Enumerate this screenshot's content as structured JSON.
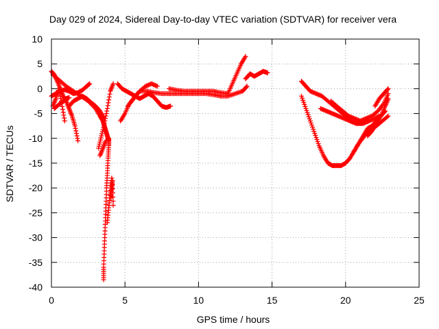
{
  "chart_data": {
    "type": "scatter",
    "title": "Day 029 of 2024, Sidereal Day-to-day VTEC variation (SDTVAR) for receiver vera",
    "xlabel": "GPS time / hours",
    "ylabel": "SDTVAR / TECUs",
    "xlim": [
      0,
      25
    ],
    "ylim": [
      -40,
      10
    ],
    "xticks": [
      0,
      5,
      10,
      15,
      20,
      25
    ],
    "yticks": [
      10,
      5,
      0,
      -5,
      -10,
      -15,
      -20,
      -25,
      -30,
      -35,
      -40
    ],
    "grid": true,
    "marker": "+",
    "color": "#ff0000",
    "series": [
      {
        "name": "s1",
        "x": [
          0.0,
          0.2,
          0.4,
          0.6,
          0.8,
          1.0,
          1.2,
          1.4,
          1.6,
          1.8
        ],
        "y": [
          3.5,
          2.8,
          1.5,
          0.0,
          -1.5,
          -2.5,
          -4.0,
          -5.5,
          -7.5,
          -10.5
        ]
      },
      {
        "name": "s2",
        "x": [
          0.0,
          0.3,
          0.6,
          0.9,
          1.2,
          1.5,
          1.8,
          2.1,
          2.4,
          2.6
        ],
        "y": [
          -1.5,
          -1.0,
          -0.5,
          -0.2,
          -0.5,
          -1.0,
          -0.8,
          -0.3,
          0.5,
          1.0
        ]
      },
      {
        "name": "s3",
        "x": [
          0.1,
          0.3,
          0.5,
          0.7,
          0.9
        ],
        "y": [
          -3.5,
          -2.0,
          0.0,
          -3.0,
          -6.5
        ]
      },
      {
        "name": "s4",
        "x": [
          0.1,
          0.5,
          1.0,
          1.5,
          2.0,
          2.5,
          3.0,
          3.3,
          3.5,
          3.6,
          3.7,
          3.8,
          3.9
        ],
        "y": [
          2.8,
          1.8,
          0.5,
          -0.5,
          -1.5,
          -2.5,
          -4.0,
          -5.5,
          -6.5,
          -7.5,
          -8.5,
          -9.5,
          -10.5
        ]
      },
      {
        "name": "s5",
        "x": [
          0.2,
          0.5,
          0.8,
          1.0,
          1.2
        ],
        "y": [
          -4.0,
          -3.2,
          -2.5,
          -2.0,
          -1.8
        ]
      },
      {
        "name": "s6",
        "x": [
          1.2,
          1.5,
          1.8,
          2.1,
          2.4,
          2.7,
          3.0,
          3.3,
          3.6
        ],
        "y": [
          -3.5,
          -2.5,
          -2.0,
          -1.5,
          -2.0,
          -2.8,
          -3.5,
          -4.5,
          -6.0
        ]
      },
      {
        "name": "s7",
        "x": [
          3.2,
          3.4,
          3.6,
          3.8,
          4.0,
          4.2
        ],
        "y": [
          -12.0,
          -9.5,
          -7.0,
          -4.0,
          -0.5,
          1.0
        ]
      },
      {
        "name": "s8",
        "x": [
          3.55,
          3.55,
          3.6,
          3.65,
          3.7,
          3.75,
          3.8,
          3.85,
          3.9,
          3.9
        ],
        "y": [
          -38.5,
          -36.0,
          -32.0,
          -28.0,
          -24.0,
          -20.0,
          -17.0,
          -14.0,
          -11.5,
          -10.0
        ]
      },
      {
        "name": "s9",
        "x": [
          3.8,
          3.9,
          4.0,
          4.1
        ],
        "y": [
          -27.0,
          -24.0,
          -21.0,
          -18.0
        ]
      },
      {
        "name": "s10",
        "x": [
          4.05,
          4.1,
          4.15,
          4.2
        ],
        "y": [
          -22.0,
          -20.0,
          -18.5,
          -23.5
        ]
      },
      {
        "name": "s11",
        "x": [
          3.3,
          3.5,
          3.7
        ],
        "y": [
          -13.5,
          -12.0,
          -10.5
        ]
      },
      {
        "name": "s12",
        "x": [
          4.7,
          5.0,
          5.3,
          5.7,
          6.0,
          6.5,
          7.0,
          7.5,
          8.0,
          8.5,
          9.0,
          9.5,
          10.0,
          10.5,
          11.0,
          11.5,
          12.0,
          12.5,
          13.0,
          13.3
        ],
        "y": [
          -6.5,
          -5.0,
          -3.0,
          -1.5,
          -0.5,
          -0.5,
          -0.8,
          -1.0,
          -1.0,
          -1.0,
          -1.0,
          -1.0,
          -1.0,
          -1.0,
          -1.2,
          -1.5,
          -1.5,
          -1.0,
          -0.5,
          0.5
        ]
      },
      {
        "name": "s13",
        "x": [
          4.5,
          4.8,
          5.1,
          5.4,
          5.7,
          6.0,
          6.3,
          6.6,
          6.9,
          7.2,
          7.5,
          7.8,
          8.1
        ],
        "y": [
          1.0,
          0.0,
          -0.5,
          -1.0,
          -1.5,
          -2.0,
          -1.5,
          -1.0,
          -1.5,
          -2.5,
          -3.5,
          -3.8,
          -3.5
        ]
      },
      {
        "name": "s14",
        "x": [
          5.2,
          5.6,
          6.0,
          6.4,
          6.8,
          7.2
        ],
        "y": [
          -3.5,
          -2.0,
          -0.5,
          0.5,
          1.0,
          0.5
        ]
      },
      {
        "name": "s15",
        "x": [
          8.0,
          8.5,
          9.0,
          9.5,
          10.0,
          10.5,
          11.0,
          11.5,
          12.0
        ],
        "y": [
          0.0,
          -0.3,
          -0.5,
          -0.5,
          -0.5,
          -0.5,
          -0.5,
          -0.8,
          -1.0
        ]
      },
      {
        "name": "s16",
        "x": [
          12.0,
          12.3,
          12.6,
          12.9,
          13.2
        ],
        "y": [
          -1.0,
          1.0,
          3.0,
          5.0,
          6.5
        ]
      },
      {
        "name": "s17",
        "x": [
          13.2,
          13.5,
          13.8,
          14.1,
          14.4,
          14.7
        ],
        "y": [
          2.0,
          3.0,
          2.5,
          3.0,
          3.5,
          3.2
        ]
      },
      {
        "name": "s18",
        "x": [
          17.0,
          17.3,
          17.6,
          18.0,
          18.4,
          18.8,
          19.2,
          19.6,
          20.0,
          20.4,
          20.8,
          21.2,
          21.6,
          22.0,
          22.3
        ],
        "y": [
          1.5,
          0.5,
          -0.5,
          -1.0,
          -1.5,
          -2.5,
          -3.5,
          -4.5,
          -5.5,
          -6.5,
          -7.0,
          -7.0,
          -6.5,
          -6.0,
          -5.5
        ]
      },
      {
        "name": "s19",
        "x": [
          17.0,
          17.3,
          17.6,
          17.9,
          18.2,
          18.5,
          18.8,
          19.1,
          19.4,
          19.7,
          20.0,
          20.3,
          20.6,
          20.9,
          21.2,
          21.5,
          21.8,
          22.1,
          22.4,
          22.7
        ],
        "y": [
          -1.5,
          -4.0,
          -6.5,
          -9.0,
          -11.5,
          -13.5,
          -15.0,
          -15.5,
          -15.5,
          -15.5,
          -15.0,
          -14.0,
          -12.5,
          -11.0,
          -9.5,
          -8.0,
          -7.5,
          -6.5,
          -5.5,
          -4.5
        ]
      },
      {
        "name": "s20",
        "x": [
          18.3,
          18.7,
          19.1,
          19.5,
          19.9,
          20.3,
          20.7,
          21.1,
          21.5
        ],
        "y": [
          -4.0,
          -4.5,
          -5.0,
          -5.5,
          -6.0,
          -6.5,
          -7.0,
          -7.0,
          -6.5
        ]
      },
      {
        "name": "s21",
        "x": [
          19.0,
          19.4,
          19.8,
          20.2,
          20.6,
          21.0,
          21.4,
          21.8,
          22.2,
          22.6,
          22.9
        ],
        "y": [
          -2.5,
          -3.5,
          -4.5,
          -5.5,
          -6.0,
          -6.5,
          -6.0,
          -5.5,
          -4.5,
          -3.0,
          -1.0
        ]
      },
      {
        "name": "s22",
        "x": [
          20.5,
          20.9,
          21.3,
          21.7,
          22.1,
          22.5,
          22.9
        ],
        "y": [
          -13.0,
          -11.0,
          -9.5,
          -8.5,
          -7.5,
          -6.5,
          -5.5
        ]
      },
      {
        "name": "s23",
        "x": [
          22.0,
          22.3,
          22.6,
          22.9
        ],
        "y": [
          -3.5,
          -2.0,
          -1.0,
          0.0
        ]
      },
      {
        "name": "s24",
        "x": [
          21.5,
          21.8,
          22.1,
          22.4,
          22.7,
          22.9
        ],
        "y": [
          -9.5,
          -8.5,
          -7.0,
          -5.5,
          -3.5,
          -2.0
        ]
      }
    ]
  }
}
